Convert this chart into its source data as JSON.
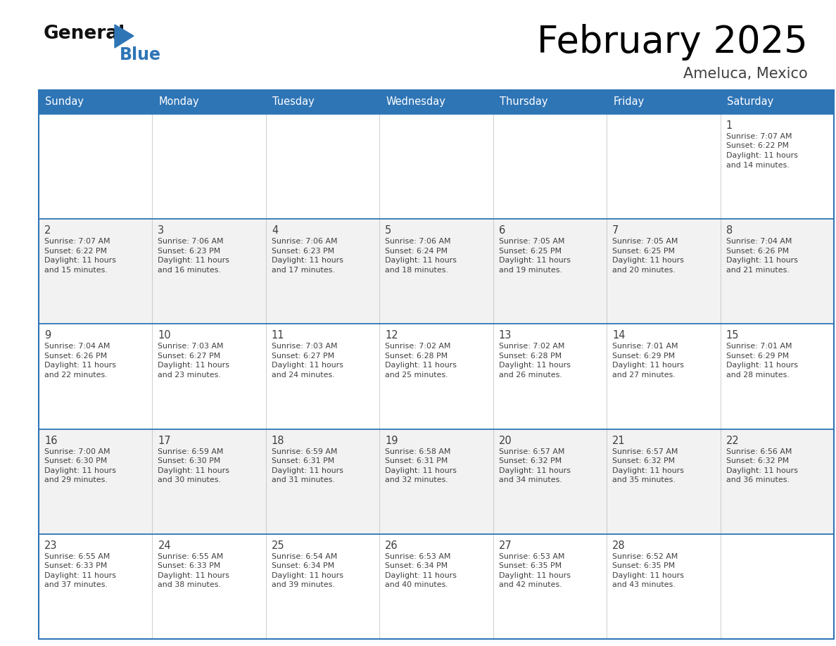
{
  "title": "February 2025",
  "subtitle": "Ameluca, Mexico",
  "days_of_week": [
    "Sunday",
    "Monday",
    "Tuesday",
    "Wednesday",
    "Thursday",
    "Friday",
    "Saturday"
  ],
  "header_bg": "#2E75B6",
  "header_text_color": "#FFFFFF",
  "cell_bg_light": "#F2F2F2",
  "cell_bg_white": "#FFFFFF",
  "border_color": "#2E75B6",
  "text_color": "#404040",
  "title_color": "#000000",
  "subtitle_color": "#404040",
  "logo_general_color": "#111111",
  "logo_blue_color": "#2E75B6",
  "calendar": [
    [
      {
        "day": null
      },
      {
        "day": null
      },
      {
        "day": null
      },
      {
        "day": null
      },
      {
        "day": null
      },
      {
        "day": null
      },
      {
        "day": 1,
        "sunrise": "7:07 AM",
        "sunset": "6:22 PM",
        "daylight": "11 hours and 14 minutes"
      }
    ],
    [
      {
        "day": 2,
        "sunrise": "7:07 AM",
        "sunset": "6:22 PM",
        "daylight": "11 hours and 15 minutes"
      },
      {
        "day": 3,
        "sunrise": "7:06 AM",
        "sunset": "6:23 PM",
        "daylight": "11 hours and 16 minutes"
      },
      {
        "day": 4,
        "sunrise": "7:06 AM",
        "sunset": "6:23 PM",
        "daylight": "11 hours and 17 minutes"
      },
      {
        "day": 5,
        "sunrise": "7:06 AM",
        "sunset": "6:24 PM",
        "daylight": "11 hours and 18 minutes"
      },
      {
        "day": 6,
        "sunrise": "7:05 AM",
        "sunset": "6:25 PM",
        "daylight": "11 hours and 19 minutes"
      },
      {
        "day": 7,
        "sunrise": "7:05 AM",
        "sunset": "6:25 PM",
        "daylight": "11 hours and 20 minutes"
      },
      {
        "day": 8,
        "sunrise": "7:04 AM",
        "sunset": "6:26 PM",
        "daylight": "11 hours and 21 minutes"
      }
    ],
    [
      {
        "day": 9,
        "sunrise": "7:04 AM",
        "sunset": "6:26 PM",
        "daylight": "11 hours and 22 minutes"
      },
      {
        "day": 10,
        "sunrise": "7:03 AM",
        "sunset": "6:27 PM",
        "daylight": "11 hours and 23 minutes"
      },
      {
        "day": 11,
        "sunrise": "7:03 AM",
        "sunset": "6:27 PM",
        "daylight": "11 hours and 24 minutes"
      },
      {
        "day": 12,
        "sunrise": "7:02 AM",
        "sunset": "6:28 PM",
        "daylight": "11 hours and 25 minutes"
      },
      {
        "day": 13,
        "sunrise": "7:02 AM",
        "sunset": "6:28 PM",
        "daylight": "11 hours and 26 minutes"
      },
      {
        "day": 14,
        "sunrise": "7:01 AM",
        "sunset": "6:29 PM",
        "daylight": "11 hours and 27 minutes"
      },
      {
        "day": 15,
        "sunrise": "7:01 AM",
        "sunset": "6:29 PM",
        "daylight": "11 hours and 28 minutes"
      }
    ],
    [
      {
        "day": 16,
        "sunrise": "7:00 AM",
        "sunset": "6:30 PM",
        "daylight": "11 hours and 29 minutes"
      },
      {
        "day": 17,
        "sunrise": "6:59 AM",
        "sunset": "6:30 PM",
        "daylight": "11 hours and 30 minutes"
      },
      {
        "day": 18,
        "sunrise": "6:59 AM",
        "sunset": "6:31 PM",
        "daylight": "11 hours and 31 minutes"
      },
      {
        "day": 19,
        "sunrise": "6:58 AM",
        "sunset": "6:31 PM",
        "daylight": "11 hours and 32 minutes"
      },
      {
        "day": 20,
        "sunrise": "6:57 AM",
        "sunset": "6:32 PM",
        "daylight": "11 hours and 34 minutes"
      },
      {
        "day": 21,
        "sunrise": "6:57 AM",
        "sunset": "6:32 PM",
        "daylight": "11 hours and 35 minutes"
      },
      {
        "day": 22,
        "sunrise": "6:56 AM",
        "sunset": "6:32 PM",
        "daylight": "11 hours and 36 minutes"
      }
    ],
    [
      {
        "day": 23,
        "sunrise": "6:55 AM",
        "sunset": "6:33 PM",
        "daylight": "11 hours and 37 minutes"
      },
      {
        "day": 24,
        "sunrise": "6:55 AM",
        "sunset": "6:33 PM",
        "daylight": "11 hours and 38 minutes"
      },
      {
        "day": 25,
        "sunrise": "6:54 AM",
        "sunset": "6:34 PM",
        "daylight": "11 hours and 39 minutes"
      },
      {
        "day": 26,
        "sunrise": "6:53 AM",
        "sunset": "6:34 PM",
        "daylight": "11 hours and 40 minutes"
      },
      {
        "day": 27,
        "sunrise": "6:53 AM",
        "sunset": "6:35 PM",
        "daylight": "11 hours and 42 minutes"
      },
      {
        "day": 28,
        "sunrise": "6:52 AM",
        "sunset": "6:35 PM",
        "daylight": "11 hours and 43 minutes"
      },
      {
        "day": null
      }
    ]
  ],
  "figsize": [
    11.88,
    9.18
  ],
  "dpi": 100
}
